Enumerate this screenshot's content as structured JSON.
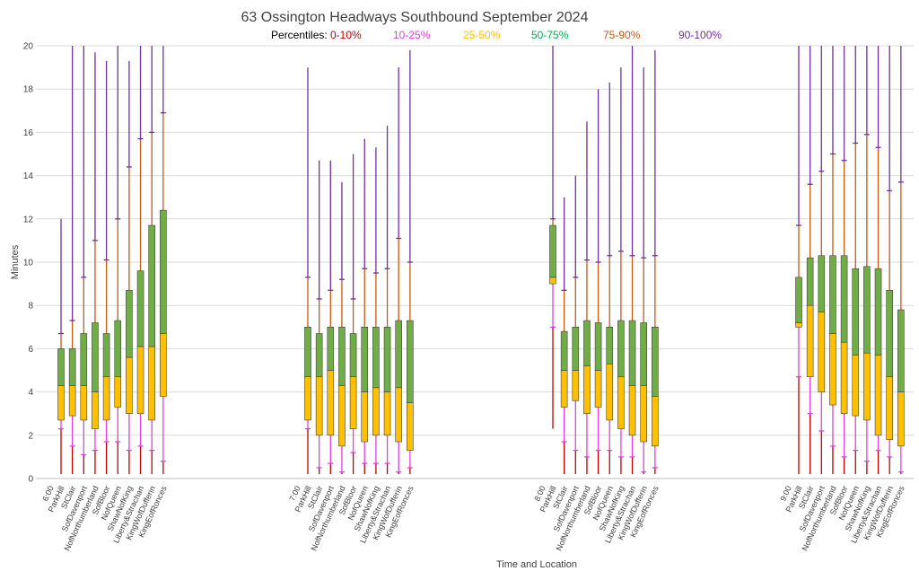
{
  "chart_data": {
    "type": "box",
    "title": "63 Ossington Headways Southbound September 2024",
    "xlabel": "Time and Location",
    "ylabel": "Minutes",
    "ylim": [
      0,
      20
    ],
    "yticks": [
      0,
      2,
      4,
      6,
      8,
      10,
      12,
      14,
      16,
      18,
      20
    ],
    "grid": true,
    "legend": {
      "label": "Percentiles:",
      "placement": "top",
      "entries": [
        {
          "name": "0-10%",
          "color": "#c00000"
        },
        {
          "name": "10-25%",
          "color": "#e040e0"
        },
        {
          "name": "25-50%",
          "color": "#ffc000"
        },
        {
          "name": "50-75%",
          "color": "#00b050"
        },
        {
          "name": "75-90%",
          "color": "#c55a11"
        },
        {
          "name": "90-100%",
          "color": "#7030a0"
        }
      ]
    },
    "colors": {
      "range_0_10": "#c00000",
      "range_10_25": "#e040e0",
      "box_25_50": "#ffc000",
      "box_50_75": "#70ad47",
      "range_75_90": "#c55a11",
      "range_90_100": "#7030a0",
      "box_edge": "#404040",
      "gridline": "#d9d9d9"
    },
    "groups": [
      {
        "label": "6:00",
        "stops": [
          {
            "name": "ParkHill",
            "min": 0.2,
            "p10": 2.3,
            "p25": 2.7,
            "p50": 4.3,
            "p75": 6.0,
            "p90": 6.7,
            "max": 12.0
          },
          {
            "name": "StClair",
            "min": 0.2,
            "p10": 1.5,
            "p25": 2.9,
            "p50": 4.3,
            "p75": 6.0,
            "p90": 7.3,
            "max": 20.0
          },
          {
            "name": "SofDavenport",
            "min": 0.2,
            "p10": 1.1,
            "p25": 2.7,
            "p50": 4.3,
            "p75": 6.7,
            "p90": 9.3,
            "max": 20.0
          },
          {
            "name": "NofNorthumberland",
            "min": 0.2,
            "p10": 1.3,
            "p25": 2.3,
            "p50": 4.0,
            "p75": 7.2,
            "p90": 11.0,
            "max": 19.7
          },
          {
            "name": "SofBloor",
            "min": 0.2,
            "p10": 1.7,
            "p25": 2.7,
            "p50": 4.7,
            "p75": 6.7,
            "p90": 10.1,
            "max": 19.3
          },
          {
            "name": "NofQueen",
            "min": 0.2,
            "p10": 1.7,
            "p25": 3.3,
            "p50": 4.7,
            "p75": 7.3,
            "p90": 12.0,
            "max": 20.0
          },
          {
            "name": "ShawNofKing",
            "min": 0.2,
            "p10": 1.3,
            "p25": 3.0,
            "p50": 5.6,
            "p75": 8.7,
            "p90": 14.4,
            "max": 19.3
          },
          {
            "name": "Liberty&Strachan",
            "min": 0.2,
            "p10": 1.5,
            "p25": 3.0,
            "p50": 6.1,
            "p75": 9.6,
            "p90": 15.7,
            "max": 20.0
          },
          {
            "name": "KingWofDufferin",
            "min": 0.2,
            "p10": 1.3,
            "p25": 2.7,
            "p50": 6.1,
            "p75": 11.7,
            "p90": 16.0,
            "max": 20.0
          },
          {
            "name": "KingEofRonces",
            "min": 0.2,
            "p10": 0.8,
            "p25": 3.8,
            "p50": 6.7,
            "p75": 12.4,
            "p90": 16.9,
            "max": 20.0
          }
        ]
      },
      {
        "label": "7:00",
        "stops": [
          {
            "name": "ParkHill",
            "min": 0.2,
            "p10": 2.3,
            "p25": 2.7,
            "p50": 4.7,
            "p75": 7.0,
            "p90": 9.3,
            "max": 19.0
          },
          {
            "name": "StClair",
            "min": 0.2,
            "p10": 0.5,
            "p25": 2.0,
            "p50": 4.7,
            "p75": 6.7,
            "p90": 8.3,
            "max": 14.7
          },
          {
            "name": "SofDavenport",
            "min": 0.2,
            "p10": 0.7,
            "p25": 2.0,
            "p50": 5.0,
            "p75": 7.0,
            "p90": 8.7,
            "max": 14.7
          },
          {
            "name": "NofNorthumberland",
            "min": 0.2,
            "p10": 0.3,
            "p25": 1.5,
            "p50": 4.3,
            "p75": 7.0,
            "p90": 9.2,
            "max": 13.7
          },
          {
            "name": "SofBloor",
            "min": 0.2,
            "p10": 1.2,
            "p25": 2.3,
            "p50": 4.7,
            "p75": 6.7,
            "p90": 8.3,
            "max": 15.0
          },
          {
            "name": "NofQueen",
            "min": 0.2,
            "p10": 0.7,
            "p25": 1.7,
            "p50": 4.0,
            "p75": 7.0,
            "p90": 9.7,
            "max": 15.7
          },
          {
            "name": "ShawNofKing",
            "min": 0.2,
            "p10": 0.7,
            "p25": 2.0,
            "p50": 4.2,
            "p75": 7.0,
            "p90": 9.5,
            "max": 15.3
          },
          {
            "name": "Liberty&Strachan",
            "min": 0.2,
            "p10": 0.7,
            "p25": 2.0,
            "p50": 4.0,
            "p75": 7.0,
            "p90": 9.7,
            "max": 16.3
          },
          {
            "name": "KingWofDufferin",
            "min": 0.2,
            "p10": 0.3,
            "p25": 1.7,
            "p50": 4.2,
            "p75": 7.3,
            "p90": 11.1,
            "max": 19.0
          },
          {
            "name": "KingEofRonces",
            "min": 0.2,
            "p10": 0.5,
            "p25": 1.3,
            "p50": 3.5,
            "p75": 7.3,
            "p90": 10.0,
            "max": 19.8
          }
        ]
      },
      {
        "label": "8:00",
        "stops": [
          {
            "name": "ParkHill",
            "min": 2.3,
            "p10": 7.0,
            "p25": 9.0,
            "p50": 9.3,
            "p75": 11.7,
            "p90": 12.0,
            "max": 20.0
          },
          {
            "name": "StClair",
            "min": 0.2,
            "p10": 1.7,
            "p25": 3.3,
            "p50": 5.0,
            "p75": 6.8,
            "p90": 8.7,
            "max": 13.0
          },
          {
            "name": "SofDavenport",
            "min": 0.2,
            "p10": 1.3,
            "p25": 3.6,
            "p50": 5.0,
            "p75": 7.0,
            "p90": 9.3,
            "max": 14.0
          },
          {
            "name": "NofNorthumberland",
            "min": 0.2,
            "p10": 1.0,
            "p25": 3.0,
            "p50": 5.2,
            "p75": 7.3,
            "p90": 10.1,
            "max": 16.5
          },
          {
            "name": "SofBloor",
            "min": 0.2,
            "p10": 1.3,
            "p25": 3.3,
            "p50": 5.0,
            "p75": 7.2,
            "p90": 10.0,
            "max": 18.0
          },
          {
            "name": "NofQueen",
            "min": 0.2,
            "p10": 1.3,
            "p25": 2.7,
            "p50": 5.3,
            "p75": 7.0,
            "p90": 10.3,
            "max": 18.3
          },
          {
            "name": "ShawNofKing",
            "min": 0.2,
            "p10": 1.0,
            "p25": 2.3,
            "p50": 4.7,
            "p75": 7.3,
            "p90": 10.5,
            "max": 19.0
          },
          {
            "name": "Liberty&Strachan",
            "min": 0.2,
            "p10": 1.0,
            "p25": 2.0,
            "p50": 4.3,
            "p75": 7.3,
            "p90": 10.3,
            "max": 20.0
          },
          {
            "name": "KingWofDufferin",
            "min": 0.2,
            "p10": 0.3,
            "p25": 1.7,
            "p50": 4.3,
            "p75": 7.2,
            "p90": 10.2,
            "max": 19.0
          },
          {
            "name": "KingEofRonces",
            "min": 0.2,
            "p10": 0.5,
            "p25": 1.5,
            "p50": 3.8,
            "p75": 7.0,
            "p90": 10.3,
            "max": 19.8
          }
        ]
      },
      {
        "label": "9:00",
        "stops": [
          {
            "name": "ParkHill",
            "min": 0.2,
            "p10": 4.7,
            "p25": 7.0,
            "p50": 7.2,
            "p75": 9.3,
            "p90": 11.7,
            "max": 20.0
          },
          {
            "name": "StClair",
            "min": 0.2,
            "p10": 3.0,
            "p25": 4.7,
            "p50": 8.0,
            "p75": 10.2,
            "p90": 13.6,
            "max": 20.0
          },
          {
            "name": "SofDavenport",
            "min": 0.2,
            "p10": 2.2,
            "p25": 4.0,
            "p50": 7.7,
            "p75": 10.3,
            "p90": 14.2,
            "max": 20.0
          },
          {
            "name": "NofNorthumberland",
            "min": 0.2,
            "p10": 1.5,
            "p25": 3.4,
            "p50": 6.7,
            "p75": 10.3,
            "p90": 15.0,
            "max": 20.0
          },
          {
            "name": "SofBloor",
            "min": 0.2,
            "p10": 1.0,
            "p25": 3.0,
            "p50": 6.3,
            "p75": 10.3,
            "p90": 14.7,
            "max": 20.0
          },
          {
            "name": "NofQueen",
            "min": 0.2,
            "p10": 1.3,
            "p25": 2.9,
            "p50": 5.7,
            "p75": 9.7,
            "p90": 15.5,
            "max": 20.0
          },
          {
            "name": "ShawNofKing",
            "min": 0.2,
            "p10": 0.8,
            "p25": 2.7,
            "p50": 5.8,
            "p75": 9.8,
            "p90": 15.9,
            "max": 20.0
          },
          {
            "name": "Liberty&Strachan",
            "min": 0.2,
            "p10": 1.3,
            "p25": 2.0,
            "p50": 5.7,
            "p75": 9.7,
            "p90": 15.3,
            "max": 20.0
          },
          {
            "name": "KingWofDufferin",
            "min": 0.2,
            "p10": 1.0,
            "p25": 1.8,
            "p50": 4.7,
            "p75": 8.7,
            "p90": 13.3,
            "max": 20.0
          },
          {
            "name": "KingEofRonces",
            "min": 0.2,
            "p10": 0.3,
            "p25": 1.5,
            "p50": 4.0,
            "p75": 7.8,
            "p90": 13.7,
            "max": 20.0
          }
        ]
      }
    ]
  }
}
